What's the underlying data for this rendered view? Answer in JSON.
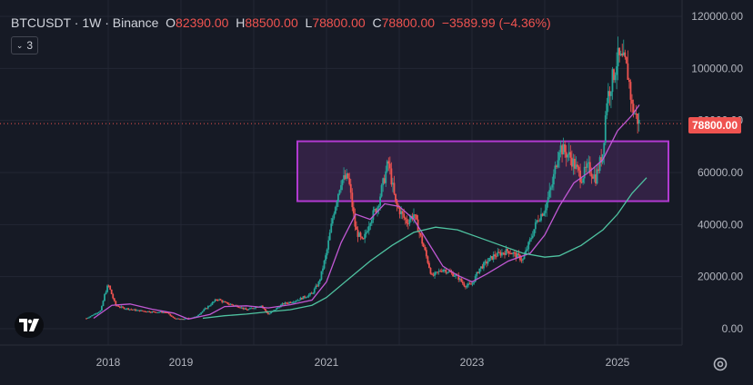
{
  "header": {
    "symbol": "BTCUSDT",
    "separator1": " · ",
    "interval": "1W",
    "separator2": " · ",
    "exchange": "Binance",
    "open_label": "O",
    "open": "82390.00",
    "high_label": "H",
    "high": "88500.00",
    "low_label": "L",
    "low": "78800.00",
    "close_label": "C",
    "close": "78800.00",
    "change": "−3589.99 (−4.36%)"
  },
  "indicators_button": {
    "label": "3"
  },
  "last_price_tag": "78800.00",
  "colors": {
    "background": "#161a25",
    "up": "#26a69a",
    "down": "#ef5350",
    "ma_short": "#c158d4",
    "ma_long": "#4fc3a1",
    "zone_fill": "#4a2a5e",
    "zone_border": "#b13ad1"
  },
  "chart_data": {
    "type": "candlestick",
    "x_ticks": [
      "2018",
      "2019",
      "2021",
      "2023",
      "2025"
    ],
    "y_ticks": [
      "0.00",
      "20000.00",
      "40000.00",
      "60000.00",
      "80000.00",
      "100000.00",
      "120000.00"
    ],
    "ylim": [
      0,
      120000
    ],
    "zone": {
      "x_start": 2020.6,
      "x_end": 2025.7,
      "y_low": 49000,
      "y_high": 72000
    },
    "price_path": [
      [
        2017.7,
        4000
      ],
      [
        2017.9,
        7000
      ],
      [
        2017.95,
        13000
      ],
      [
        2018.0,
        17000
      ],
      [
        2018.1,
        9000
      ],
      [
        2018.2,
        8000
      ],
      [
        2018.4,
        7000
      ],
      [
        2018.6,
        6500
      ],
      [
        2018.8,
        6300
      ],
      [
        2018.9,
        4000
      ],
      [
        2019.0,
        3600
      ],
      [
        2019.2,
        4500
      ],
      [
        2019.35,
        8000
      ],
      [
        2019.5,
        11500
      ],
      [
        2019.6,
        10000
      ],
      [
        2019.8,
        8500
      ],
      [
        2019.9,
        7200
      ],
      [
        2020.1,
        9000
      ],
      [
        2020.2,
        5500
      ],
      [
        2020.4,
        9500
      ],
      [
        2020.6,
        11000
      ],
      [
        2020.8,
        13500
      ],
      [
        2020.9,
        18000
      ],
      [
        2021.0,
        29000
      ],
      [
        2021.1,
        45000
      ],
      [
        2021.2,
        57000
      ],
      [
        2021.3,
        58000
      ],
      [
        2021.4,
        38000
      ],
      [
        2021.5,
        33000
      ],
      [
        2021.6,
        42000
      ],
      [
        2021.7,
        47000
      ],
      [
        2021.85,
        64000
      ],
      [
        2021.95,
        48000
      ],
      [
        2022.1,
        41000
      ],
      [
        2022.2,
        44000
      ],
      [
        2022.35,
        30000
      ],
      [
        2022.45,
        20000
      ],
      [
        2022.6,
        23000
      ],
      [
        2022.8,
        20000
      ],
      [
        2022.9,
        16500
      ],
      [
        2023.0,
        17000
      ],
      [
        2023.1,
        23000
      ],
      [
        2023.3,
        28000
      ],
      [
        2023.5,
        30000
      ],
      [
        2023.7,
        26500
      ],
      [
        2023.8,
        34000
      ],
      [
        2023.9,
        42000
      ],
      [
        2024.0,
        46000
      ],
      [
        2024.1,
        55000
      ],
      [
        2024.2,
        70000
      ],
      [
        2024.35,
        66000
      ],
      [
        2024.5,
        58000
      ],
      [
        2024.6,
        62000
      ],
      [
        2024.7,
        58000
      ],
      [
        2024.8,
        68000
      ],
      [
        2024.85,
        88000
      ],
      [
        2024.95,
        98000
      ],
      [
        2025.0,
        104000
      ],
      [
        2025.1,
        102000
      ],
      [
        2025.15,
        97000
      ],
      [
        2025.2,
        85000
      ],
      [
        2025.25,
        82000
      ],
      [
        2025.3,
        78800
      ]
    ],
    "ma_short": [
      [
        2017.8,
        4000
      ],
      [
        2018.05,
        9000
      ],
      [
        2018.3,
        9500
      ],
      [
        2018.6,
        7500
      ],
      [
        2018.9,
        6000
      ],
      [
        2019.1,
        3700
      ],
      [
        2019.4,
        5500
      ],
      [
        2019.6,
        8500
      ],
      [
        2019.9,
        8800
      ],
      [
        2020.2,
        8000
      ],
      [
        2020.5,
        9200
      ],
      [
        2020.8,
        11000
      ],
      [
        2021.0,
        18000
      ],
      [
        2021.2,
        33000
      ],
      [
        2021.4,
        44000
      ],
      [
        2021.6,
        42000
      ],
      [
        2021.8,
        48000
      ],
      [
        2022.0,
        47000
      ],
      [
        2022.2,
        42000
      ],
      [
        2022.4,
        33000
      ],
      [
        2022.6,
        24000
      ],
      [
        2022.8,
        20500
      ],
      [
        2023.0,
        18000
      ],
      [
        2023.2,
        21000
      ],
      [
        2023.5,
        26000
      ],
      [
        2023.8,
        29000
      ],
      [
        2024.0,
        36000
      ],
      [
        2024.2,
        47000
      ],
      [
        2024.4,
        56000
      ],
      [
        2024.6,
        60000
      ],
      [
        2024.8,
        65000
      ],
      [
        2025.0,
        76000
      ],
      [
        2025.2,
        82000
      ],
      [
        2025.3,
        86000
      ]
    ],
    "ma_long": [
      [
        2019.3,
        4000
      ],
      [
        2019.6,
        5000
      ],
      [
        2019.9,
        5600
      ],
      [
        2020.2,
        6500
      ],
      [
        2020.5,
        7300
      ],
      [
        2020.8,
        9000
      ],
      [
        2021.0,
        12000
      ],
      [
        2021.3,
        19000
      ],
      [
        2021.6,
        26000
      ],
      [
        2021.9,
        32000
      ],
      [
        2022.2,
        37000
      ],
      [
        2022.5,
        39000
      ],
      [
        2022.8,
        38000
      ],
      [
        2023.1,
        35000
      ],
      [
        2023.4,
        32000
      ],
      [
        2023.7,
        29000
      ],
      [
        2024.0,
        27500
      ],
      [
        2024.2,
        28000
      ],
      [
        2024.5,
        32000
      ],
      [
        2024.8,
        38000
      ],
      [
        2025.0,
        44000
      ],
      [
        2025.2,
        52000
      ],
      [
        2025.4,
        58000
      ]
    ]
  }
}
